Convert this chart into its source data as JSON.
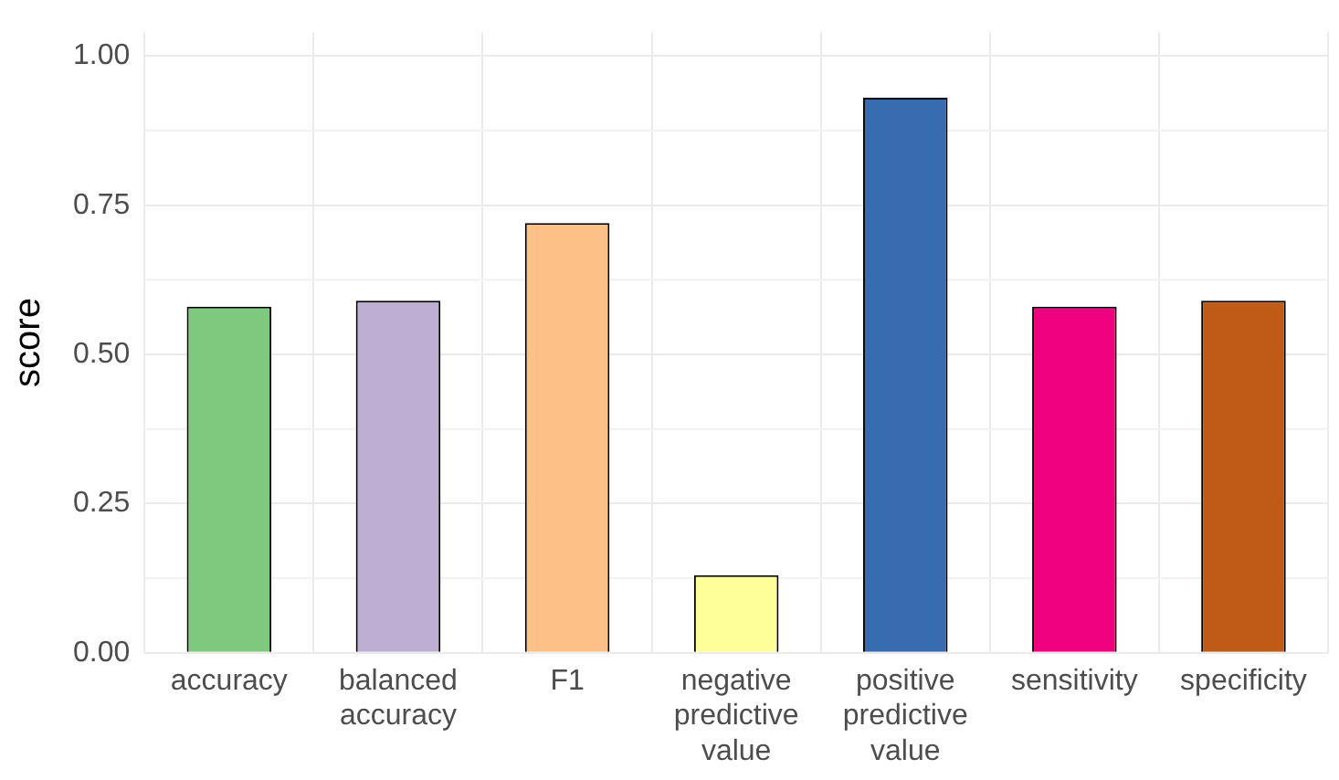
{
  "chart_data": {
    "type": "bar",
    "ylabel": "score",
    "categories": [
      "accuracy",
      "balanced accuracy",
      "F1",
      "negative predictive value",
      "positive predictive value",
      "sensitivity",
      "specificity"
    ],
    "values": [
      0.58,
      0.59,
      0.72,
      0.13,
      0.93,
      0.58,
      0.59
    ],
    "colors": [
      "#7fc97f",
      "#beaed4",
      "#fdc086",
      "#ffff99",
      "#386cb0",
      "#f0027f",
      "#bf5b17"
    ],
    "ylim": [
      0,
      1.04
    ],
    "yticks": [
      {
        "value": 0,
        "label": "0.00"
      },
      {
        "value": 0.25,
        "label": "0.25"
      },
      {
        "value": 0.5,
        "label": "0.50"
      },
      {
        "value": 0.75,
        "label": "0.75"
      },
      {
        "value": 1,
        "label": "1.00"
      }
    ],
    "grid": true
  }
}
